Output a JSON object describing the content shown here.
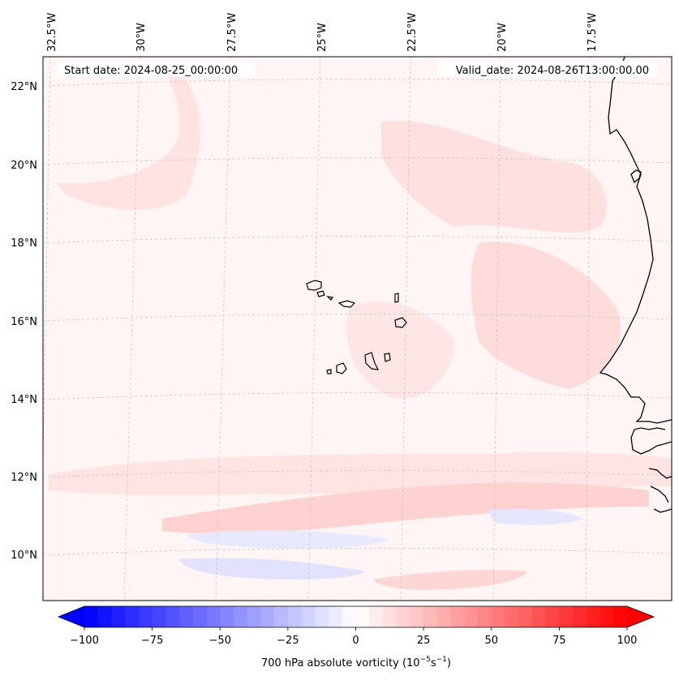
{
  "header": {
    "start_date": "Start date: 2024-08-25_00:00:00",
    "valid_date": "Valid_date: 2024-08-26T13:00:00.00"
  },
  "axes": {
    "lon_labels": [
      "32.5°W",
      "30°W",
      "27.5°W",
      "25°W",
      "22.5°W",
      "20°W",
      "17.5°W"
    ],
    "lat_labels": [
      "22°N",
      "20°N",
      "18°N",
      "16°N",
      "14°N",
      "12°N",
      "10°N"
    ],
    "gridlines": true
  },
  "colorbar": {
    "label_main": "700 hPa absolute vorticity (10",
    "label_exp1": "−5",
    "label_mid": "s",
    "label_exp2": "−1",
    "label_end": ")",
    "ticks": [
      "−100",
      "−75",
      "−50",
      "−25",
      "0",
      "25",
      "50",
      "75",
      "100"
    ],
    "range": [
      -100,
      100
    ],
    "step": 5,
    "low_color": "#0000ff",
    "high_color": "#ff0000",
    "mid_color": "#ffffff"
  },
  "map": {
    "background_color": "#fff5f5",
    "coastline_color": "#000000"
  }
}
